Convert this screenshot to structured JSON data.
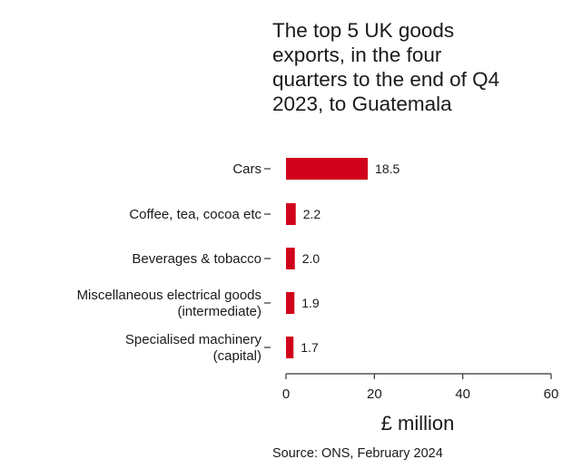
{
  "chart_data": {
    "type": "bar",
    "orientation": "horizontal",
    "title_lines": [
      "The top 5 UK goods",
      "exports, in the four",
      "quarters to the end of Q4",
      "2023, to Guatemala"
    ],
    "categories": [
      [
        "Cars"
      ],
      [
        "Coffee, tea, cocoa etc"
      ],
      [
        "Beverages & tobacco"
      ],
      [
        "Miscellaneous electrical goods",
        "(intermediate)"
      ],
      [
        "Specialised machinery",
        "(capital)"
      ]
    ],
    "values": [
      18.5,
      2.2,
      2.0,
      1.9,
      1.7
    ],
    "value_labels": [
      "18.5",
      "2.2",
      "2.0",
      "1.9",
      "1.7"
    ],
    "xlabel": "£ million",
    "xlim": [
      0,
      60
    ],
    "xticks": [
      0,
      20,
      40,
      60
    ],
    "bar_color": "#d0021b",
    "grid": false,
    "source": "Source: ONS, February 2024"
  }
}
